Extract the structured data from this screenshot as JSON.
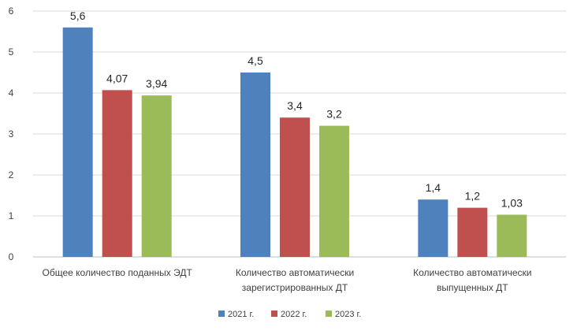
{
  "chart_data": {
    "type": "bar",
    "title": "",
    "xlabel": "",
    "ylabel": "",
    "ylim": [
      0,
      6
    ],
    "yticks": [
      0,
      1,
      2,
      3,
      4,
      5,
      6
    ],
    "grid": true,
    "legend_position": "bottom",
    "categories": [
      [
        "Общее количество поданных ЭДТ"
      ],
      [
        "Количество автоматически",
        "зарегистрированных ДТ"
      ],
      [
        "Количество автоматически",
        "выпущенных ДТ"
      ]
    ],
    "series": [
      {
        "name": "2021 г.",
        "color": "#4f81bd",
        "values": [
          5.6,
          4.5,
          1.4
        ],
        "labels": [
          "5,6",
          "4,5",
          "1,4"
        ]
      },
      {
        "name": "2022 г.",
        "color": "#c0504d",
        "values": [
          4.07,
          3.4,
          1.2
        ],
        "labels": [
          "4,07",
          "3,4",
          "1,2"
        ]
      },
      {
        "name": "2023 г.",
        "color": "#9bbb59",
        "values": [
          3.94,
          3.2,
          1.03
        ],
        "labels": [
          "3,94",
          "3,2",
          "1,03"
        ]
      }
    ]
  }
}
